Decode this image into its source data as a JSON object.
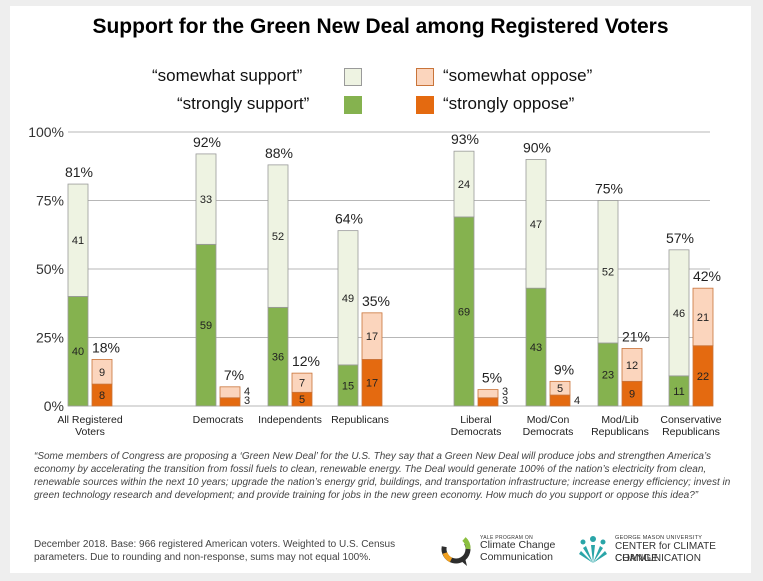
{
  "chart_data": {
    "type": "bar",
    "subtype": "stacked-paired",
    "title": "Support for the Green New Deal among Registered Voters",
    "ylim": [
      0,
      100
    ],
    "y_ticks": [
      "0%",
      "25%",
      "50%",
      "75%",
      "100%"
    ],
    "legend": {
      "somewhat_support": "“somewhat support”",
      "somewhat_oppose": "“somewhat oppose”",
      "strongly_support": "“strongly support”",
      "strongly_oppose": "“strongly oppose”"
    },
    "groups": [
      {
        "label": [
          "All Registered",
          "Voters"
        ],
        "support": {
          "strongly": 40,
          "somewhat": 41,
          "total": "81%"
        },
        "oppose": {
          "strongly": 8,
          "somewhat": 9,
          "total": "18%"
        }
      },
      {
        "label": [
          "Democrats"
        ],
        "support": {
          "strongly": 59,
          "somewhat": 33,
          "total": "92%"
        },
        "oppose": {
          "strongly": 3,
          "somewhat": 4,
          "total": "7%"
        }
      },
      {
        "label": [
          "Independents"
        ],
        "support": {
          "strongly": 36,
          "somewhat": 52,
          "total": "88%"
        },
        "oppose": {
          "strongly": 5,
          "somewhat": 7,
          "total": "12%"
        }
      },
      {
        "label": [
          "Republicans"
        ],
        "support": {
          "strongly": 15,
          "somewhat": 49,
          "total": "64%"
        },
        "oppose": {
          "strongly": 17,
          "somewhat": 17,
          "total": "35%"
        }
      },
      {
        "label": [
          "Liberal",
          "Democrats"
        ],
        "support": {
          "strongly": 69,
          "somewhat": 24,
          "total": "93%"
        },
        "oppose": {
          "strongly": 3,
          "somewhat": 3,
          "total": "5%"
        }
      },
      {
        "label": [
          "Mod/Con",
          "Democrats"
        ],
        "support": {
          "strongly": 43,
          "somewhat": 47,
          "total": "90%"
        },
        "oppose": {
          "strongly": 4,
          "somewhat": 5,
          "total": "9%"
        }
      },
      {
        "label": [
          "Mod/Lib",
          "Republicans"
        ],
        "support": {
          "strongly": 23,
          "somewhat": 52,
          "total": "75%"
        },
        "oppose": {
          "strongly": 9,
          "somewhat": 12,
          "total": "21%"
        }
      },
      {
        "label": [
          "Conservative",
          "Republicans"
        ],
        "support": {
          "strongly": 11,
          "somewhat": 46,
          "total": "57%"
        },
        "oppose": {
          "strongly": 22,
          "somewhat": 21,
          "total": "42%"
        }
      }
    ]
  },
  "colors": {
    "strongly_support": "#85b24f",
    "somewhat_support": "#eef3e2",
    "support_border": "#9a9a9a",
    "strongly_oppose": "#e46a10",
    "somewhat_oppose": "#fbd5bd",
    "oppose_border": "#c9743a",
    "gridline": "#b7b7b7"
  },
  "footnote": "“Some members of Congress are proposing a ‘Green New Deal’ for the U.S. They say that a Green New Deal will produce jobs and strengthen America’s economy by accelerating the transition from fossil fuels to clean, renewable energy. The Deal would generate 100% of the nation’s electricity from clean, renewable sources within the next 10 years; upgrade the nation’s energy grid, buildings, and transportation infrastructure; increase energy efficiency; invest in green technology research and development; and provide training for jobs in the new green economy. How much do you support or oppose this idea?”",
  "source_note": "December 2018. Base: 966 registered American voters. Weighted to U.S. Census parameters. Due to rounding and non-response, sums may not equal 100%.",
  "logos": {
    "yale_small": "YALE PROGRAM ON",
    "yale_line1": "Climate Change",
    "yale_line2": "Communication",
    "gmu_small": "GEORGE MASON UNIVERSITY",
    "gmu_line1": "CENTER for CLIMATE CHANGE",
    "gmu_line2": "COMMUNICATION"
  }
}
